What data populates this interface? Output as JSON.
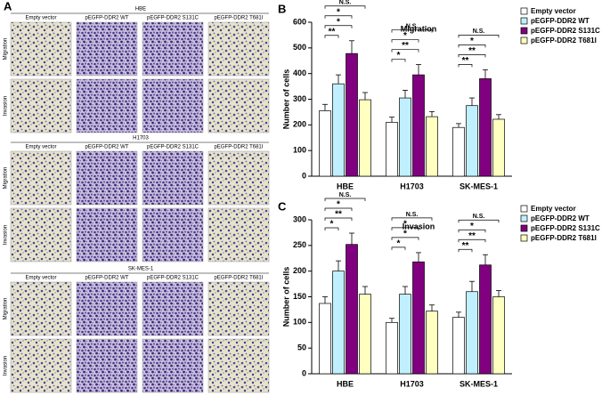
{
  "panel_a": {
    "letter": "A",
    "groups": [
      "HBE",
      "H1703",
      "SK-MES-1"
    ],
    "columns": [
      "Empty vector",
      "pEGFP-DDR2 WT",
      "pEGFP-DDR2 S131C",
      "pEGFP-DDR2 T681I"
    ],
    "rows": [
      "Migration",
      "Invasion"
    ]
  },
  "chart_data": [
    {
      "type": "bar",
      "letter": "B",
      "title": "Migration",
      "y_label": "Number of cells",
      "categories": [
        "HBE",
        "H1703",
        "SK-MES-1"
      ],
      "ylim": [
        0,
        600
      ],
      "yticks": [
        0,
        100,
        200,
        300,
        400,
        500,
        600
      ],
      "legend": "right",
      "series": [
        {
          "name": "Empty vector",
          "color": "#ffffff",
          "values": [
            255,
            210,
            190
          ],
          "errors": [
            25,
            20,
            15
          ]
        },
        {
          "name": "pEGFP-DDR2 WT",
          "color": "#c0f0ff",
          "values": [
            360,
            305,
            275
          ],
          "errors": [
            35,
            30,
            30
          ]
        },
        {
          "name": "pEGFP-DDR2 S131C",
          "color": "#800080",
          "values": [
            478,
            395,
            380
          ],
          "errors": [
            50,
            40,
            35
          ]
        },
        {
          "name": "pEGFP-DDR2 T681I",
          "color": "#ffffc0",
          "values": [
            298,
            232,
            222
          ],
          "errors": [
            28,
            20,
            18
          ]
        }
      ],
      "significance": [
        [
          "N.S.",
          "*",
          "*",
          "**"
        ],
        [
          "N.S.",
          "*",
          "**",
          "*"
        ],
        [
          "N.S.",
          "*",
          "**",
          "**"
        ]
      ]
    },
    {
      "type": "bar",
      "letter": "C",
      "title": "Invasion",
      "y_label": "Number of cells",
      "categories": [
        "HBE",
        "H1703",
        "SK-MES-1"
      ],
      "ylim": [
        0,
        300
      ],
      "yticks": [
        0,
        50,
        100,
        150,
        200,
        250,
        300
      ],
      "legend": "right",
      "series": [
        {
          "name": "Empty vector",
          "color": "#ffffff",
          "values": [
            137,
            100,
            110
          ],
          "errors": [
            13,
            8,
            10
          ]
        },
        {
          "name": "pEGFP-DDR2 WT",
          "color": "#c0f0ff",
          "values": [
            200,
            155,
            160
          ],
          "errors": [
            20,
            15,
            20
          ]
        },
        {
          "name": "pEGFP-DDR2 S131C",
          "color": "#800080",
          "values": [
            252,
            218,
            212
          ],
          "errors": [
            22,
            18,
            20
          ]
        },
        {
          "name": "pEGFP-DDR2 T681I",
          "color": "#ffffc0",
          "values": [
            155,
            122,
            150
          ],
          "errors": [
            15,
            12,
            12
          ]
        }
      ],
      "significance": [
        [
          "N.S.",
          "*",
          "**",
          "*"
        ],
        [
          "N.S.",
          "*",
          "*",
          "*"
        ],
        [
          "N.S.",
          "*",
          "**",
          "**"
        ]
      ]
    }
  ]
}
